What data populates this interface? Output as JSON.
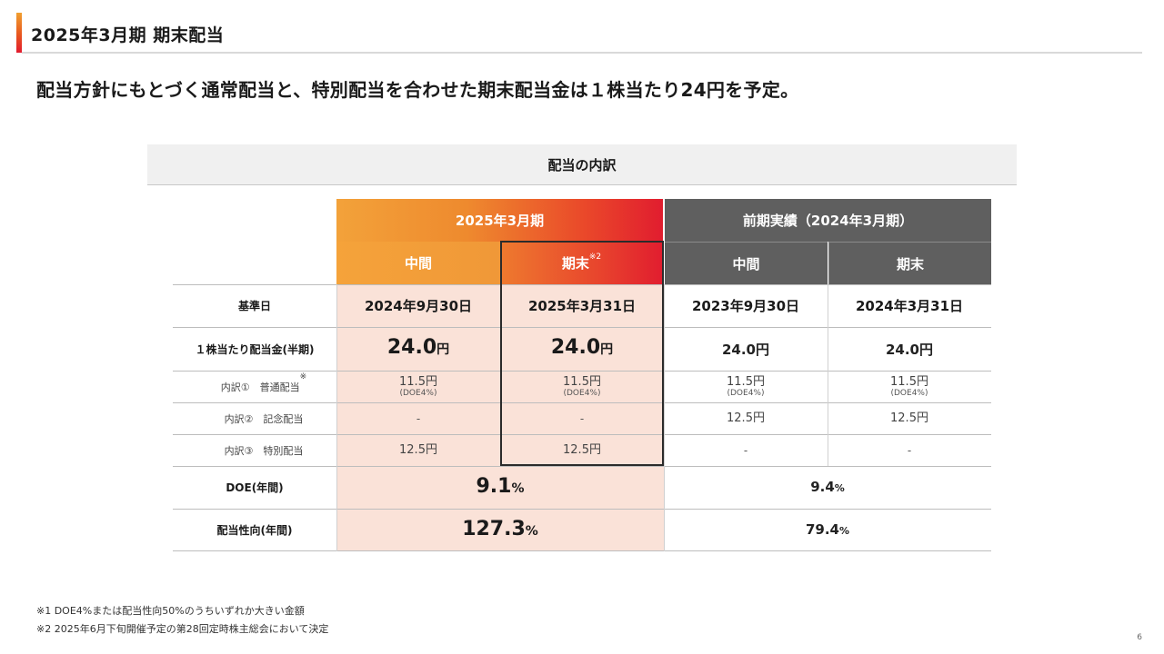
{
  "header": {
    "title": "2025年3月期 期末配当",
    "headline": "配当方針にもとづく通常配当と、特別配当を合わせた期末配当金は１株当たり24円を予定。"
  },
  "section": {
    "title": "配当の内訳"
  },
  "table": {
    "group_headers": {
      "current": "2025年3月期",
      "previous": "前期実績（2024年3月期）"
    },
    "col_headers": {
      "cur_interim": "中間",
      "cur_year_end": "期末",
      "cur_year_end_note": "※2",
      "prev_interim": "中間",
      "prev_year_end": "期末"
    },
    "rows": {
      "record_date": {
        "label": "基準日",
        "cur_interim": "2024年9月30日",
        "cur_year_end": "2025年3月31日",
        "prev_interim": "2023年9月30日",
        "prev_year_end": "2024年3月31日"
      },
      "per_share": {
        "label": "１株当たり配当金(半期)",
        "cur_interim_num": "24.0",
        "cur_interim_unit": "円",
        "cur_year_end_num": "24.0",
        "cur_year_end_unit": "円",
        "prev_interim": "24.0円",
        "prev_year_end": "24.0円"
      },
      "ordinary": {
        "label": "内訳①　普通配当",
        "label_note": "※",
        "cur_interim": "11.5円",
        "cur_interim_sub": "(DOE4%)",
        "cur_year_end": "11.5円",
        "cur_year_end_sub": "(DOE4%)",
        "prev_interim": "11.5円",
        "prev_interim_sub": "(DOE4%)",
        "prev_year_end": "11.5円",
        "prev_year_end_sub": "(DOE4%)"
      },
      "commemorative": {
        "label": "内訳②　記念配当",
        "cur_interim": "-",
        "cur_year_end": "-",
        "prev_interim": "12.5円",
        "prev_year_end": "12.5円"
      },
      "special": {
        "label": "内訳③　特別配当",
        "cur_interim": "12.5円",
        "cur_year_end": "12.5円",
        "prev_interim": "-",
        "prev_year_end": "-"
      },
      "doe": {
        "label": "DOE(年間)",
        "current_num": "9.1",
        "current_unit": "%",
        "previous_num": "9.4",
        "previous_unit": "%"
      },
      "payout": {
        "label": "配当性向(年間)",
        "current_num": "127.3",
        "current_unit": "%",
        "previous_num": "79.4",
        "previous_unit": "%"
      }
    }
  },
  "footnotes": {
    "note1": "※1 DOE4%または配当性向50%のうちいずれか大きい金額",
    "note2": "※2 2025年6月下旬開催予定の第28回定時株主総会において決定"
  },
  "page_number": "6",
  "colors": {
    "accent_orange": "#f3a23a",
    "accent_red": "#e11d2f",
    "header_gray": "#5f5f5f",
    "highlight_fill": "#fae2d8"
  }
}
